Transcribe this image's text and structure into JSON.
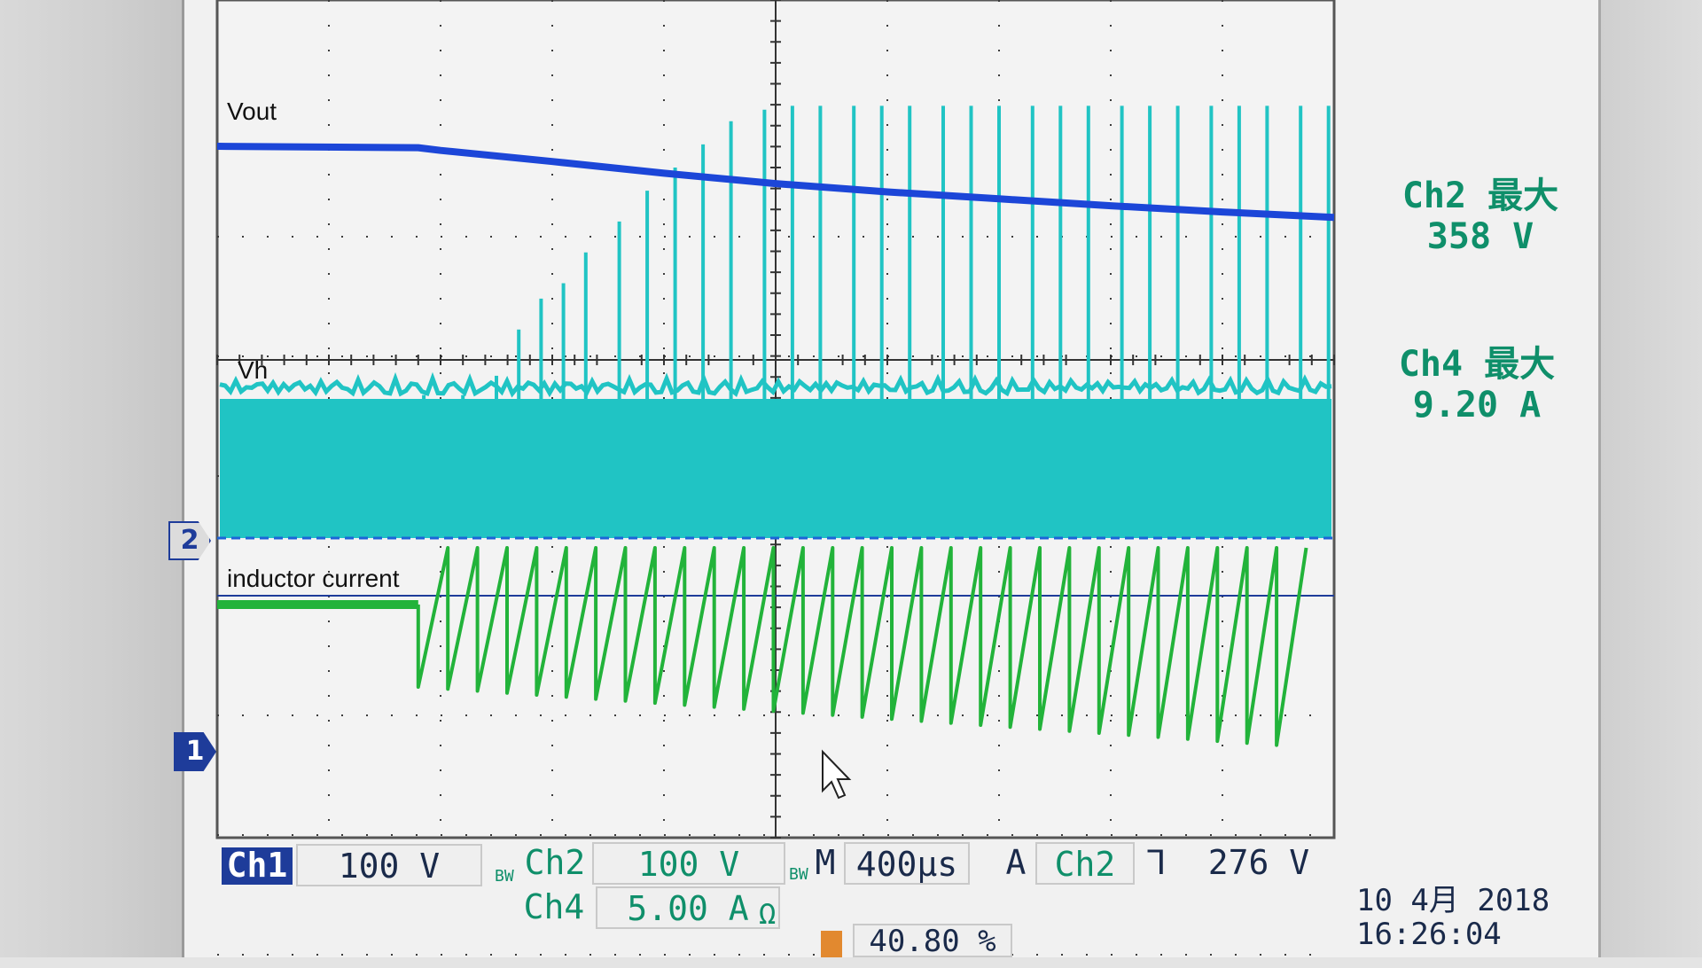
{
  "trace_labels": {
    "vout": "Vout",
    "vh": "Vh",
    "inductor": "inductor current"
  },
  "measurements": [
    {
      "label": "Ch2 最大",
      "value": "358 V"
    },
    {
      "label": "Ch4 最大",
      "value": "9.20 A"
    }
  ],
  "channel_markers": {
    "ch2": "2",
    "ch1": "1"
  },
  "bottom_bar": {
    "ch1_label": "Ch1",
    "ch1_scale": "100 V",
    "bw1": "BW",
    "ch2_label": "Ch2",
    "ch2_scale": "100 V",
    "bw2": "BW",
    "m_label": "M",
    "timebase": "400µs",
    "trig_label": "A",
    "trig_source": "Ch2",
    "trig_slope": "⅂",
    "trig_level": "276 V",
    "ch4_label": "Ch4",
    "ch4_scale": "5.00 A",
    "ch4_symbols": "Ω",
    "trigger_position": "40.80 %",
    "date": "10 4月  2018",
    "time": "16:26:04"
  },
  "colors": {
    "vout": "#1c46d8",
    "vh": "#20c4c4",
    "inductor": "#22b33a",
    "grid": "#3c3c3c",
    "readout": "#0f8f6a"
  },
  "chart_data": {
    "type": "line",
    "title": "",
    "xlabel": "",
    "ylabel": "",
    "x_divisions": 10,
    "y_divisions": 8,
    "series": [
      {
        "name": "Vout",
        "x": [
          0,
          1.8,
          2.0,
          3.0,
          4.0,
          5.0,
          6.0,
          7.0,
          8.0,
          9.0,
          10.0
        ],
        "y": [
          3.05,
          3.03,
          2.99,
          2.83,
          2.66,
          2.51,
          2.39,
          2.29,
          2.19,
          2.1,
          2.02
        ]
      },
      {
        "name": "Vh",
        "x_pulses": [
          1.85,
          2.2,
          2.5,
          2.7,
          2.9,
          3.1,
          3.3,
          3.6,
          3.85,
          4.1,
          4.35,
          4.6,
          4.9,
          5.15,
          5.4,
          5.7,
          5.95,
          6.2,
          6.5,
          6.75,
          7.0,
          7.3,
          7.55,
          7.8,
          8.1,
          8.35,
          8.6,
          8.9,
          9.15,
          9.4,
          9.7,
          9.95
        ],
        "pulse_peak": [
          0.05,
          0.05,
          0.3,
          0.9,
          1.3,
          1.5,
          1.9,
          2.3,
          2.7,
          3.0,
          3.3,
          3.6,
          3.75,
          3.8,
          3.8,
          3.8,
          3.8,
          3.8,
          3.8,
          3.8,
          3.8,
          3.8,
          3.8,
          3.8,
          3.8,
          3.8,
          3.8,
          3.8,
          3.8,
          3.8,
          3.8,
          3.8
        ],
        "band_top": 1.35,
        "band_bottom": 0.0
      },
      {
        "name": "inductor current",
        "x_pre": [
          0,
          1.8
        ],
        "y_pre": -1.5,
        "sawtooth_start": 1.8,
        "sawtooth_period": 0.265,
        "y_peak": -0.05,
        "y_valley_start": -2.7,
        "y_valley_end": -3.7
      }
    ]
  }
}
